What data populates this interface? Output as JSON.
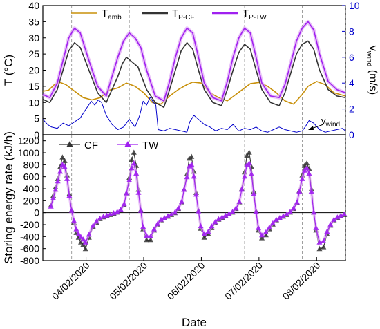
{
  "chart_data": [
    {
      "type": "line",
      "ylabel": "T (°C)",
      "y2label_main": "v",
      "y2label_sub": "wind",
      "y2label_unit": " (m/s)",
      "ylim": [
        0,
        40
      ],
      "y2lim": [
        0,
        10
      ],
      "yticks": [
        0,
        5,
        10,
        15,
        20,
        25,
        30,
        35,
        40
      ],
      "y2ticks": [
        0,
        2,
        4,
        6,
        8,
        10
      ],
      "xlim": [
        3.0,
        8.25
      ],
      "vlines": [
        3.5,
        4.5,
        5.5,
        6.5,
        7.5,
        8.25
      ],
      "grid": false,
      "legend_position": "top",
      "legend": [
        {
          "main": "T",
          "sub": "amb",
          "color": "#c8900a"
        },
        {
          "main": "T",
          "sub": "P-CF",
          "color": "#333333"
        },
        {
          "main": "T",
          "sub": "P-TW",
          "color": "#a020f0"
        }
      ],
      "annotation": {
        "main": "v",
        "sub": "wind"
      },
      "series": [
        {
          "key": "T_amb",
          "axis": "left",
          "color": "#c8900a",
          "x": [
            3.0,
            3.1,
            3.2,
            3.3,
            3.4,
            3.55,
            3.7,
            3.85,
            4.0,
            4.15,
            4.3,
            4.45,
            4.6,
            4.75,
            4.9,
            5.05,
            5.2,
            5.35,
            5.5,
            5.6,
            5.75,
            5.9,
            6.05,
            6.2,
            6.35,
            6.5,
            6.6,
            6.75,
            6.9,
            7.05,
            7.2,
            7.35,
            7.5,
            7.6,
            7.75,
            7.9,
            8.05,
            8.25
          ],
          "y": [
            13.5,
            13.8,
            15.5,
            16.2,
            15.5,
            13.5,
            11.5,
            10.8,
            11.5,
            13.8,
            14.5,
            16.0,
            15.0,
            13.0,
            10.0,
            9.5,
            12.0,
            14.0,
            15.5,
            16.3,
            16.0,
            13.0,
            11.5,
            10.5,
            12.5,
            14.5,
            15.8,
            16.2,
            15.0,
            13.0,
            10.5,
            9.5,
            12.5,
            15.0,
            16.5,
            15.5,
            13.0,
            12.0
          ]
        },
        {
          "key": "T_P-CF",
          "axis": "left",
          "color": "#333333",
          "x": [
            3.0,
            3.12,
            3.25,
            3.35,
            3.45,
            3.55,
            3.65,
            3.8,
            3.95,
            4.1,
            4.2,
            4.3,
            4.38,
            4.45,
            4.55,
            4.65,
            4.8,
            4.95,
            5.1,
            5.2,
            5.3,
            5.4,
            5.5,
            5.6,
            5.7,
            5.8,
            5.95,
            6.1,
            6.2,
            6.3,
            6.4,
            6.5,
            6.6,
            6.7,
            6.8,
            6.95,
            7.1,
            7.2,
            7.3,
            7.4,
            7.5,
            7.6,
            7.7,
            7.8,
            7.95,
            8.1,
            8.25
          ],
          "y": [
            11.0,
            10.0,
            14.0,
            20.0,
            26.0,
            28.5,
            27.0,
            20.0,
            13.0,
            10.0,
            14.0,
            18.0,
            22.0,
            24.0,
            22.5,
            21.0,
            14.0,
            10.0,
            8.5,
            14.0,
            20.0,
            26.0,
            28.5,
            26.5,
            20.0,
            14.0,
            10.0,
            9.0,
            14.0,
            20.0,
            25.5,
            28.0,
            26.5,
            20.0,
            14.0,
            10.0,
            9.0,
            13.0,
            19.0,
            25.0,
            28.0,
            29.0,
            26.5,
            20.0,
            14.0,
            12.0,
            11.5
          ]
        },
        {
          "key": "T_P-TW",
          "axis": "left",
          "color": "#a020f0",
          "x": [
            3.0,
            3.12,
            3.25,
            3.35,
            3.45,
            3.55,
            3.65,
            3.8,
            3.95,
            4.1,
            4.2,
            4.3,
            4.4,
            4.5,
            4.6,
            4.7,
            4.8,
            4.95,
            5.1,
            5.2,
            5.3,
            5.4,
            5.5,
            5.6,
            5.7,
            5.8,
            5.95,
            6.1,
            6.2,
            6.3,
            6.4,
            6.5,
            6.6,
            6.7,
            6.8,
            6.95,
            7.1,
            7.2,
            7.3,
            7.4,
            7.5,
            7.6,
            7.7,
            7.8,
            7.95,
            8.1,
            8.25
          ],
          "y": [
            12.5,
            11.5,
            16.0,
            23.0,
            30.0,
            33.0,
            31.5,
            23.0,
            15.0,
            12.0,
            18.0,
            24.0,
            29.0,
            31.5,
            30.0,
            27.0,
            20.0,
            12.0,
            10.5,
            16.5,
            24.0,
            30.0,
            33.0,
            31.5,
            24.0,
            16.0,
            11.5,
            10.5,
            16.5,
            24.0,
            30.0,
            33.0,
            31.5,
            24.0,
            16.0,
            12.0,
            11.5,
            15.5,
            22.0,
            29.0,
            33.0,
            35.0,
            32.5,
            25.0,
            16.5,
            14.0,
            13.0
          ]
        },
        {
          "key": "v_wind",
          "axis": "right",
          "color": "#0000cc",
          "x": [
            3.0,
            3.08,
            3.15,
            3.25,
            3.35,
            3.45,
            3.55,
            3.65,
            3.72,
            3.78,
            3.84,
            3.9,
            3.96,
            4.02,
            4.1,
            4.2,
            4.3,
            4.4,
            4.5,
            4.6,
            4.68,
            4.74,
            4.8,
            4.86,
            4.92,
            4.96,
            5.0,
            5.1,
            5.2,
            5.3,
            5.4,
            5.5,
            5.55,
            5.62,
            5.7,
            5.8,
            5.9,
            6.0,
            6.1,
            6.2,
            6.3,
            6.4,
            6.5,
            6.6,
            6.7,
            6.8,
            6.9,
            7.0,
            7.1,
            7.2,
            7.3,
            7.4,
            7.5,
            7.55,
            7.62,
            7.7,
            7.8,
            7.9,
            8.0,
            8.1,
            8.2,
            8.25
          ],
          "y": [
            1.2,
            0.8,
            0.6,
            0.5,
            0.9,
            0.7,
            1.0,
            1.3,
            1.8,
            2.2,
            2.6,
            2.3,
            2.7,
            2.5,
            1.5,
            0.8,
            0.4,
            0.6,
            1.2,
            0.6,
            1.5,
            2.6,
            2.3,
            2.9,
            2.5,
            2.3,
            0.4,
            0.3,
            0.5,
            0.4,
            0.3,
            0.2,
            1.0,
            1.5,
            1.2,
            0.8,
            0.6,
            0.3,
            0.5,
            0.4,
            0.8,
            0.3,
            0.5,
            0.4,
            0.6,
            0.3,
            0.2,
            0.4,
            0.6,
            0.4,
            0.3,
            0.2,
            0.3,
            0.6,
            1.1,
            0.9,
            0.4,
            0.2,
            0.3,
            0.4,
            0.5,
            0.3
          ]
        }
      ]
    },
    {
      "type": "line",
      "ylabel": "Storing energy rate (kJ/h)",
      "xlabel": "Date",
      "ylim": [
        -800,
        1300
      ],
      "yticks": [
        -800,
        -600,
        -400,
        -200,
        0,
        200,
        400,
        600,
        800,
        1000,
        1200
      ],
      "xlim": [
        3.0,
        8.25
      ],
      "xticks": [
        3.75,
        4.75,
        5.75,
        6.75,
        7.75
      ],
      "xticklabels": [
        "04/02/2020",
        "05/02/2020",
        "06/02/2020",
        "07/02/2020",
        "08/02/2020"
      ],
      "vlines": [
        3.5,
        4.5,
        5.5,
        6.5,
        7.5,
        8.25
      ],
      "zero_line": true,
      "grid": false,
      "legend_position": "top-left",
      "legend": [
        {
          "name": "CF",
          "color": "#333333",
          "marker": "triangle-up"
        },
        {
          "name": "TW",
          "color": "#a020f0",
          "marker": "triangle-up"
        }
      ],
      "series": [
        {
          "name": "CF",
          "color": "#333333",
          "x": [
            3.14,
            3.18,
            3.22,
            3.26,
            3.3,
            3.34,
            3.38,
            3.42,
            3.46,
            3.5,
            3.54,
            3.58,
            3.62,
            3.66,
            3.7,
            3.74,
            3.8,
            3.87,
            3.93,
            3.99,
            4.05,
            4.11,
            4.17,
            4.23,
            4.29,
            4.35,
            4.41,
            4.45,
            4.5,
            4.54,
            4.58,
            4.62,
            4.66,
            4.7,
            4.74,
            4.8,
            4.87,
            4.93,
            4.99,
            5.05,
            5.11,
            5.17,
            5.23,
            5.29,
            5.35,
            5.41,
            5.45,
            5.5,
            5.54,
            5.58,
            5.62,
            5.66,
            5.7,
            5.74,
            5.8,
            5.87,
            5.93,
            5.99,
            6.05,
            6.11,
            6.17,
            6.23,
            6.29,
            6.35,
            6.41,
            6.45,
            6.5,
            6.54,
            6.58,
            6.62,
            6.66,
            6.7,
            6.74,
            6.8,
            6.87,
            6.93,
            6.99,
            7.05,
            7.11,
            7.17,
            7.23,
            7.29,
            7.35,
            7.41,
            7.45,
            7.5,
            7.54,
            7.58,
            7.62,
            7.66,
            7.7,
            7.74,
            7.8,
            7.87,
            7.93,
            7.99,
            8.05,
            8.11,
            8.17,
            8.23
          ],
          "y": [
            120,
            280,
            420,
            560,
            760,
            920,
            860,
            620,
            310,
            40,
            -170,
            -340,
            -420,
            -500,
            -540,
            -610,
            -420,
            -240,
            -170,
            -110,
            -80,
            -60,
            -40,
            -20,
            0,
            40,
            120,
            320,
            580,
            880,
            1000,
            780,
            380,
            40,
            -280,
            -460,
            -460,
            -300,
            -200,
            -130,
            -100,
            -70,
            -40,
            -10,
            60,
            170,
            380,
            640,
            900,
            930,
            680,
            330,
            30,
            -270,
            -420,
            -360,
            -260,
            -180,
            -120,
            -90,
            -60,
            -30,
            0,
            60,
            170,
            390,
            670,
            950,
            1000,
            760,
            350,
            20,
            -300,
            -430,
            -380,
            -280,
            -200,
            -130,
            -100,
            -70,
            -40,
            0,
            60,
            160,
            360,
            620,
            780,
            820,
            730,
            390,
            0,
            -300,
            -610,
            -580,
            -360,
            -220,
            -130,
            -90,
            -60,
            -40
          ]
        },
        {
          "name": "TW",
          "color": "#a020f0",
          "x": [
            3.14,
            3.18,
            3.22,
            3.26,
            3.3,
            3.34,
            3.38,
            3.42,
            3.46,
            3.5,
            3.54,
            3.58,
            3.62,
            3.66,
            3.7,
            3.74,
            3.8,
            3.87,
            3.93,
            3.99,
            4.05,
            4.11,
            4.17,
            4.23,
            4.29,
            4.35,
            4.41,
            4.45,
            4.5,
            4.54,
            4.58,
            4.62,
            4.66,
            4.7,
            4.74,
            4.8,
            4.87,
            4.93,
            4.99,
            5.05,
            5.11,
            5.17,
            5.23,
            5.29,
            5.35,
            5.41,
            5.45,
            5.5,
            5.54,
            5.58,
            5.62,
            5.66,
            5.7,
            5.74,
            5.8,
            5.87,
            5.93,
            5.99,
            6.05,
            6.11,
            6.17,
            6.23,
            6.29,
            6.35,
            6.41,
            6.45,
            6.5,
            6.54,
            6.58,
            6.62,
            6.66,
            6.7,
            6.74,
            6.8,
            6.87,
            6.93,
            6.99,
            7.05,
            7.11,
            7.17,
            7.23,
            7.29,
            7.35,
            7.41,
            7.45,
            7.5,
            7.54,
            7.58,
            7.62,
            7.66,
            7.7,
            7.74,
            7.8,
            7.87,
            7.93,
            7.99,
            8.05,
            8.11,
            8.17,
            8.23
          ],
          "y": [
            100,
            240,
            380,
            520,
            680,
            800,
            760,
            560,
            280,
            30,
            -140,
            -280,
            -360,
            -410,
            -450,
            -500,
            -370,
            -220,
            -150,
            -100,
            -70,
            -50,
            -30,
            -10,
            10,
            50,
            140,
            320,
            540,
            740,
            820,
            650,
            330,
            30,
            -240,
            -390,
            -400,
            -280,
            -190,
            -120,
            -90,
            -60,
            -30,
            0,
            70,
            180,
            380,
            590,
            770,
            800,
            600,
            300,
            20,
            -230,
            -360,
            -320,
            -230,
            -160,
            -110,
            -80,
            -50,
            -20,
            10,
            70,
            180,
            380,
            600,
            790,
            820,
            640,
            310,
            10,
            -260,
            -380,
            -330,
            -250,
            -180,
            -120,
            -90,
            -60,
            -30,
            10,
            70,
            170,
            350,
            560,
            700,
            740,
            650,
            350,
            0,
            -260,
            -500,
            -480,
            -320,
            -200,
            -120,
            -80,
            -50,
            -30
          ]
        }
      ]
    }
  ]
}
